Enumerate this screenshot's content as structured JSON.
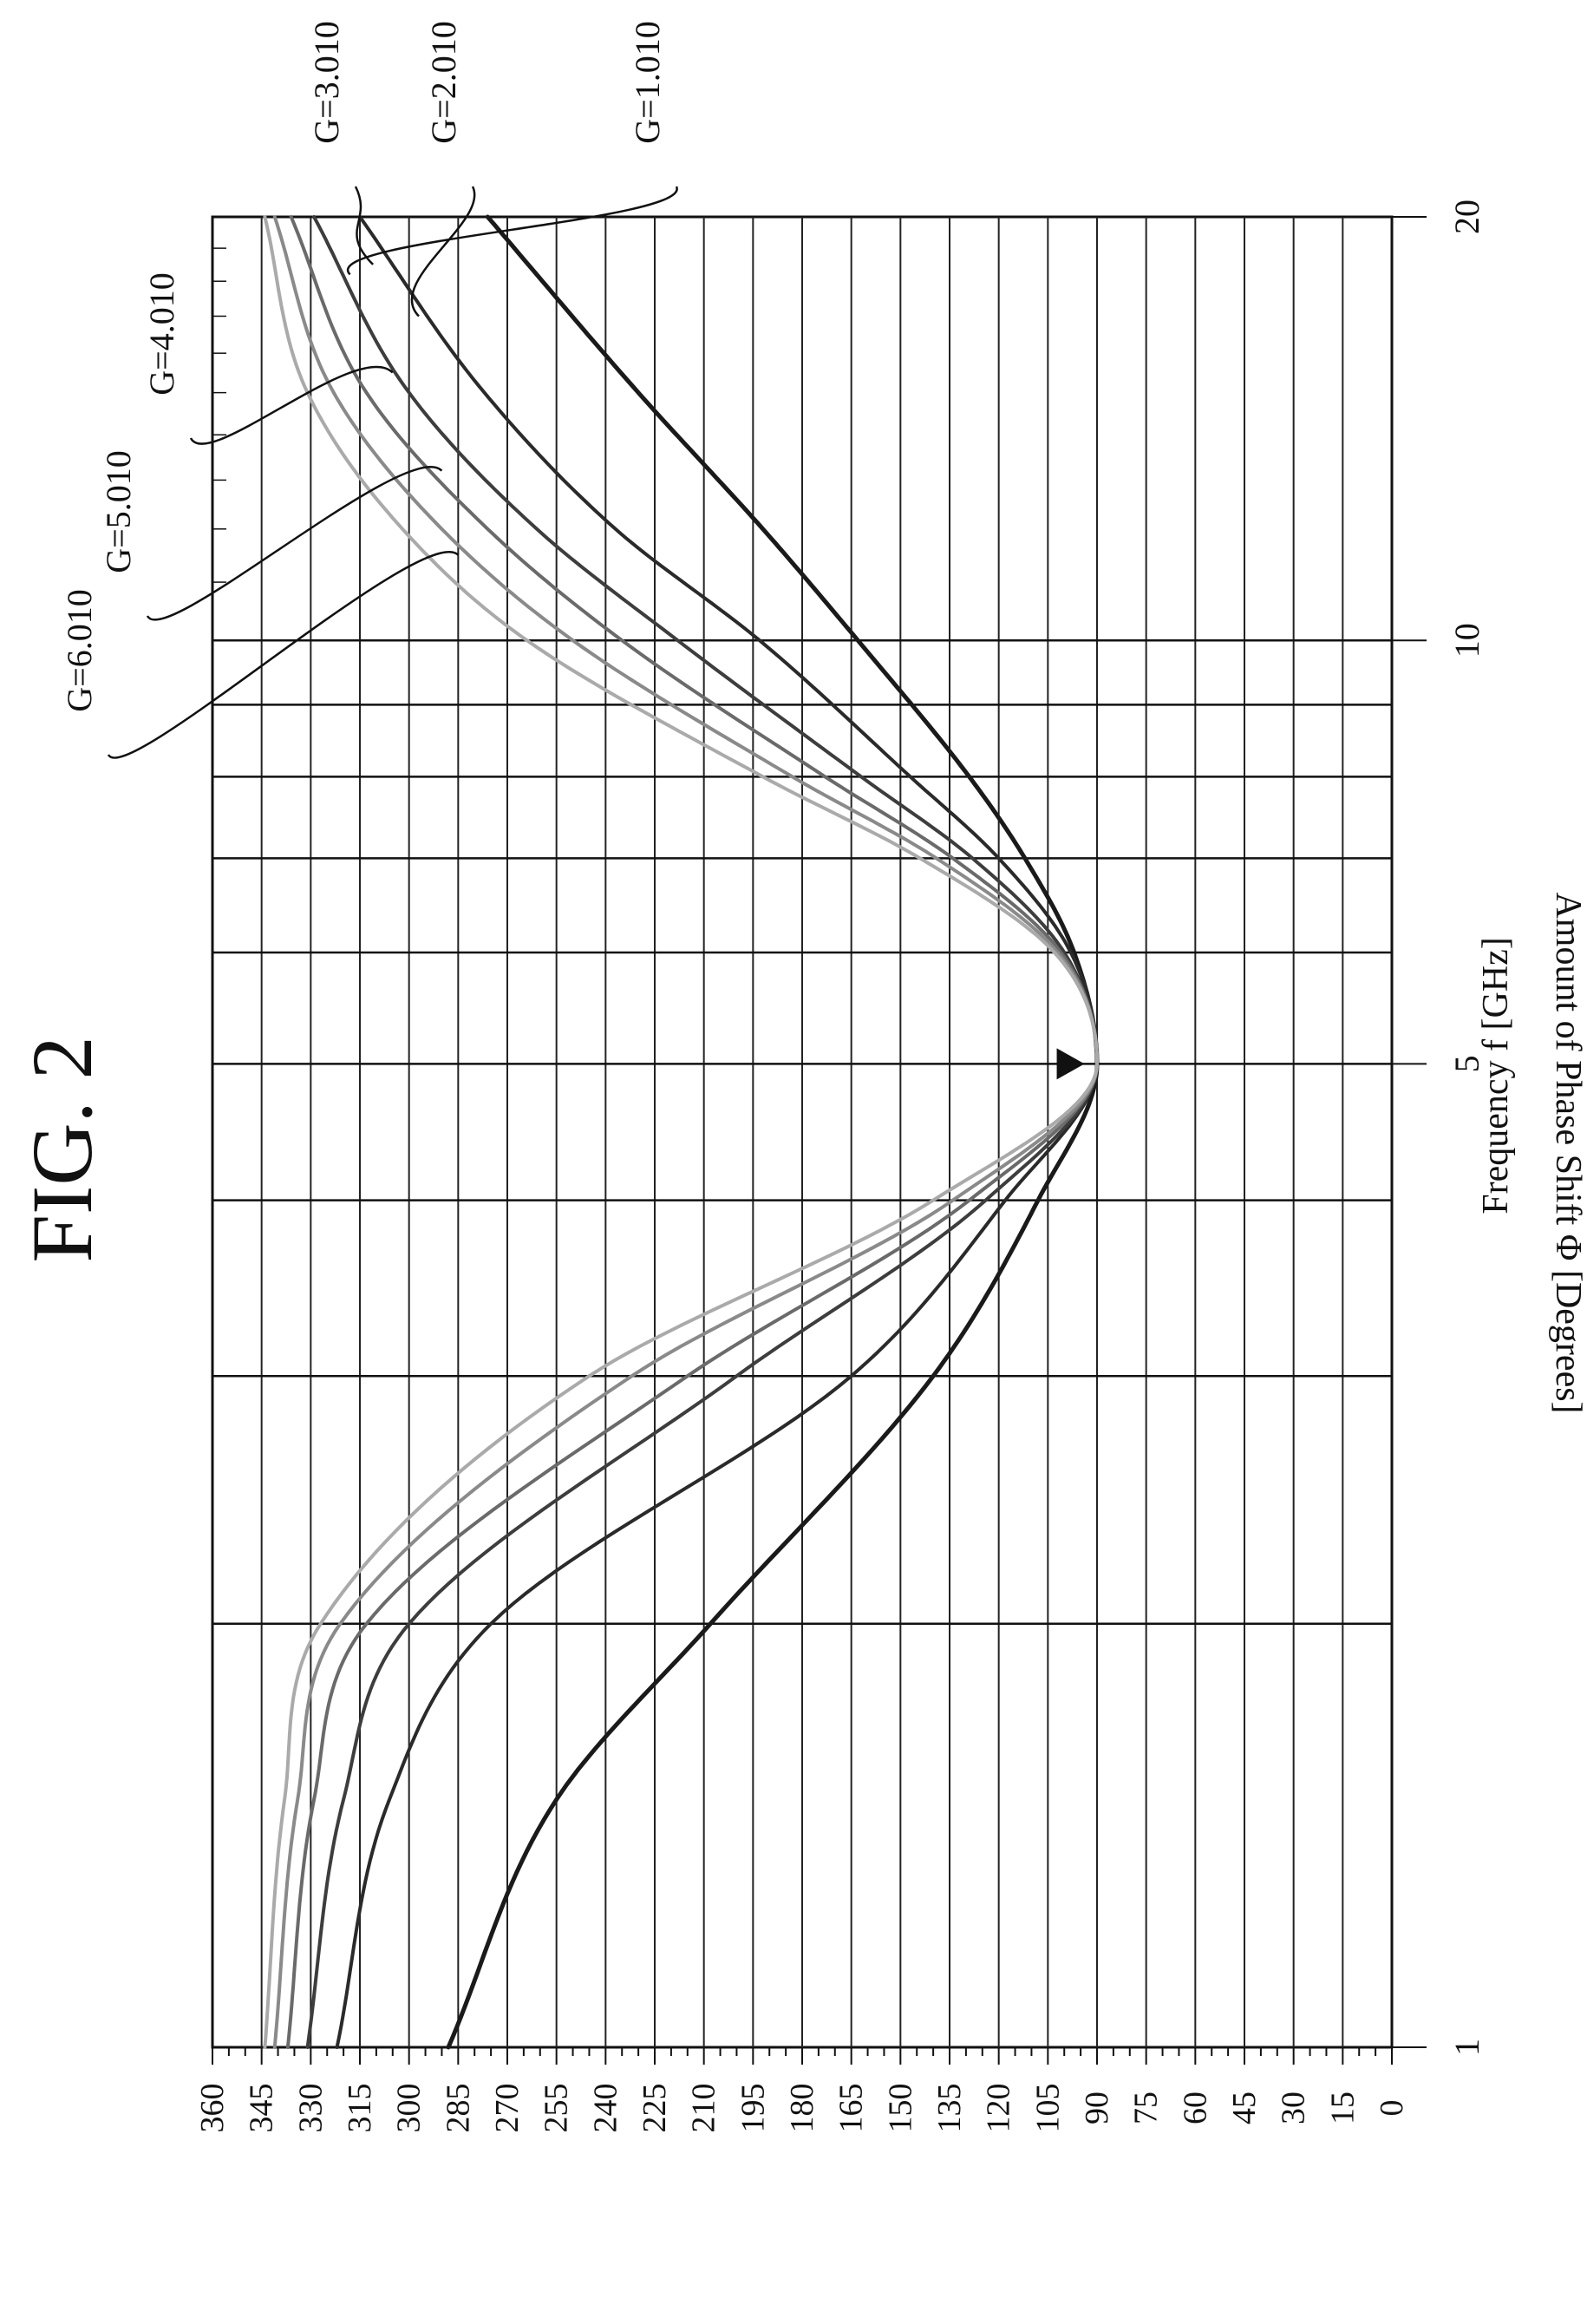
{
  "figure": {
    "title": "FIG. 2",
    "xlabel": "Frequency f [GHz]",
    "ylabel": "Amount of Phase Shift Φ [Degrees]"
  },
  "chart_data": {
    "type": "line",
    "title": "FIG. 2",
    "xlabel": "Frequency f [GHz]",
    "ylabel": "Amount of Phase Shift Φ [Degrees]",
    "x_scale": "log",
    "xlim": [
      1,
      20
    ],
    "ylim": [
      0,
      360
    ],
    "x_tick_labels": [
      "1",
      "5",
      "10",
      "20"
    ],
    "y_tick_labels": [
      "0",
      "15",
      "30",
      "45",
      "60",
      "75",
      "90",
      "105",
      "120",
      "135",
      "150",
      "165",
      "180",
      "195",
      "210",
      "225",
      "240",
      "255",
      "270",
      "285",
      "300",
      "315",
      "330",
      "345",
      "360"
    ],
    "grid": true,
    "orientation": "rotated 90 degrees counter-clockwise on the page",
    "marker": {
      "x": 5,
      "y": 97,
      "symbol": "triangle"
    },
    "series": [
      {
        "name": "G=1.010",
        "color": "#1a1a1a",
        "width": 5,
        "x": [
          1,
          1.5,
          2,
          3,
          4,
          5,
          6,
          7,
          8,
          10,
          12,
          15,
          20
        ],
        "y": [
          288,
          255,
          208,
          140,
          108,
          90,
          97,
          112,
          129,
          163,
          192,
          230,
          276
        ]
      },
      {
        "name": "G=2.010",
        "color": "#2a2a2a",
        "width": 4,
        "x": [
          1,
          1.5,
          2,
          3,
          4,
          5,
          6,
          7,
          8,
          10,
          12,
          15,
          20
        ],
        "y": [
          322,
          306,
          275,
          165,
          118,
          90,
          98,
          120,
          147,
          193,
          237,
          277,
          315
        ]
      },
      {
        "name": "G=3.010",
        "color": "#3d3d3d",
        "width": 4,
        "x": [
          1,
          1.5,
          2,
          3,
          4,
          5,
          6,
          7,
          8,
          10,
          12,
          15,
          20
        ],
        "y": [
          331,
          320,
          300,
          200,
          124,
          90,
          100,
          128,
          162,
          218,
          261,
          300,
          329
        ]
      },
      {
        "name": "G=4.010",
        "color": "#6a6a6a",
        "width": 4,
        "x": [
          1,
          1.5,
          2,
          3,
          4,
          5,
          6,
          7,
          8,
          10,
          12,
          15,
          20
        ],
        "y": [
          337,
          329,
          313,
          215,
          129,
          90,
          101,
          134,
          173,
          235,
          276,
          313,
          336
        ]
      },
      {
        "name": "G=5.010",
        "color": "#8a8a8a",
        "width": 4,
        "x": [
          1,
          1.5,
          2,
          3,
          4,
          5,
          6,
          7,
          8,
          10,
          12,
          15,
          20
        ],
        "y": [
          341,
          334,
          321,
          232,
          134,
          90,
          102,
          139,
          183,
          250,
          290,
          323,
          341
        ]
      },
      {
        "name": "G=6.010",
        "color": "#aaaaaa",
        "width": 4,
        "x": [
          1,
          1.5,
          2,
          3,
          4,
          5,
          6,
          7,
          8,
          10,
          12,
          15,
          20
        ],
        "y": [
          344,
          338,
          327,
          245,
          140,
          90,
          103,
          144,
          192,
          264,
          302,
          331,
          344
        ]
      }
    ]
  }
}
